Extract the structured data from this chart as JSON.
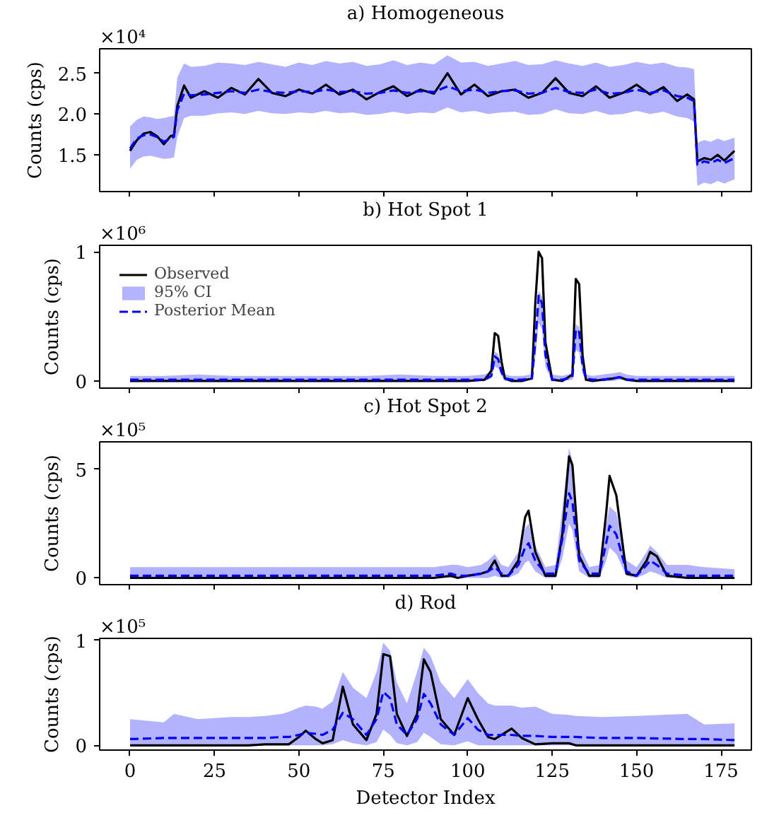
{
  "chart_data": [
    {
      "type": "line",
      "title": "a) Homogeneous",
      "ylabel": "Counts (cps)",
      "annotations": [
        "×10⁴"
      ],
      "tick_labels": "y",
      "grid": false,
      "legend": false,
      "xlim": [
        -9,
        184
      ],
      "xticks": [
        0,
        25,
        50,
        75,
        100,
        125,
        150,
        175
      ],
      "ylim": [
        1.05,
        2.8
      ],
      "yticks": [
        1.5,
        {
          "value": 2.0,
          "label": "2.0"
        },
        2.5
      ],
      "x": [
        0,
        2,
        4,
        6,
        8,
        10,
        12,
        13,
        14,
        16,
        18,
        22,
        26,
        30,
        34,
        38,
        42,
        46,
        50,
        54,
        58,
        62,
        66,
        70,
        74,
        78,
        82,
        86,
        90,
        94,
        98,
        102,
        106,
        110,
        114,
        118,
        122,
        126,
        130,
        134,
        138,
        142,
        146,
        150,
        154,
        158,
        162,
        165,
        167,
        168,
        170,
        172,
        174,
        176,
        179
      ],
      "series": [
        {
          "color": "#000000",
          "line_style": "solid",
          "values": [
            1.55,
            1.68,
            1.76,
            1.78,
            1.73,
            1.63,
            1.73,
            1.74,
            2.1,
            2.35,
            2.2,
            2.28,
            2.2,
            2.32,
            2.24,
            2.43,
            2.26,
            2.22,
            2.3,
            2.25,
            2.36,
            2.24,
            2.3,
            2.18,
            2.27,
            2.34,
            2.22,
            2.3,
            2.25,
            2.5,
            2.24,
            2.36,
            2.22,
            2.28,
            2.3,
            2.2,
            2.26,
            2.44,
            2.26,
            2.22,
            2.34,
            2.2,
            2.26,
            2.36,
            2.24,
            2.33,
            2.16,
            2.24,
            2.18,
            1.42,
            1.46,
            1.44,
            1.5,
            1.43,
            1.55
          ]
        },
        {
          "lower": [
            1.33,
            1.44,
            1.48,
            1.49,
            1.47,
            1.45,
            1.46,
            1.47,
            1.72,
            1.95,
            1.98,
            1.98,
            2.01,
            2.02,
            2.0,
            2.04,
            2.01,
            2.0,
            2.02,
            2.01,
            2.04,
            2.01,
            2.02,
            1.99,
            2.0,
            2.03,
            2.0,
            2.02,
            2.01,
            2.08,
            2.02,
            2.04,
            2.0,
            2.02,
            2.03,
            1.99,
            2.0,
            2.06,
            2.01,
            2.0,
            2.04,
            1.99,
            2.0,
            2.04,
            2.0,
            2.03,
            1.97,
            1.95,
            1.91,
            1.12,
            1.16,
            1.14,
            1.18,
            1.15,
            1.2
          ],
          "upper": [
            1.85,
            1.93,
            1.97,
            1.96,
            1.94,
            1.95,
            1.97,
            1.98,
            2.45,
            2.62,
            2.58,
            2.59,
            2.63,
            2.62,
            2.6,
            2.64,
            2.61,
            2.58,
            2.63,
            2.6,
            2.65,
            2.62,
            2.64,
            2.59,
            2.61,
            2.66,
            2.6,
            2.63,
            2.61,
            2.72,
            2.63,
            2.64,
            2.59,
            2.62,
            2.65,
            2.6,
            2.61,
            2.66,
            2.62,
            2.59,
            2.63,
            2.58,
            2.6,
            2.64,
            2.61,
            2.63,
            2.58,
            2.57,
            2.55,
            1.65,
            1.68,
            1.66,
            1.7,
            1.67,
            1.71
          ],
          "color": "#0000ff",
          "line_style": "dashed",
          "values": [
            1.58,
            1.7,
            1.74,
            1.75,
            1.72,
            1.66,
            1.7,
            1.72,
            2.05,
            2.25,
            2.23,
            2.24,
            2.26,
            2.28,
            2.26,
            2.3,
            2.27,
            2.26,
            2.28,
            2.27,
            2.3,
            2.27,
            2.28,
            2.25,
            2.26,
            2.29,
            2.26,
            2.28,
            2.27,
            2.34,
            2.28,
            2.3,
            2.26,
            2.28,
            2.29,
            2.25,
            2.26,
            2.32,
            2.27,
            2.26,
            2.3,
            2.25,
            2.26,
            2.3,
            2.26,
            2.29,
            2.22,
            2.2,
            2.16,
            1.38,
            1.42,
            1.4,
            1.44,
            1.4,
            1.46
          ]
        }
      ]
    },
    {
      "type": "line",
      "title": "b) Hot Spot 1",
      "ylabel": "Counts (cps)",
      "annotations": [
        "×10⁶"
      ],
      "tick_labels": "y",
      "grid": false,
      "legend": "top left",
      "xlim": [
        -9,
        184
      ],
      "xticks": [
        0,
        25,
        50,
        75,
        100,
        125,
        150,
        175
      ],
      "ylim": [
        -0.055,
        1.05
      ],
      "yticks": [
        0,
        1
      ],
      "x": [
        0,
        10,
        20,
        30,
        40,
        50,
        60,
        70,
        80,
        90,
        100,
        105,
        107,
        108,
        109,
        110,
        111,
        113,
        116,
        119,
        120,
        121,
        122,
        123,
        125,
        128,
        131,
        132,
        133,
        134,
        135,
        137,
        140,
        143,
        145,
        147,
        150,
        160,
        170,
        179
      ],
      "series": [
        {
          "name": "Observed",
          "color": "#000000",
          "line_style": "solid",
          "values": [
            0,
            0,
            0,
            0,
            0,
            0,
            0,
            0,
            0,
            0,
            0,
            0.01,
            0.08,
            0.37,
            0.35,
            0.15,
            0.02,
            0,
            0,
            0.02,
            0.6,
            1.0,
            0.95,
            0.3,
            0.01,
            0,
            0.05,
            0.79,
            0.75,
            0.2,
            0.01,
            0,
            0.01,
            0.02,
            0.03,
            0.01,
            0,
            0,
            0,
            0
          ]
        },
        {
          "name": "95% CI",
          "type": "area",
          "color": "#b3b3ff",
          "values": [
            null,
            null,
            null,
            null,
            null,
            null,
            null,
            null,
            null,
            null,
            null,
            null,
            null,
            null,
            null,
            null,
            null,
            null,
            null,
            null,
            null,
            null,
            null,
            null,
            null,
            null,
            null,
            null,
            null,
            null,
            null,
            null,
            null,
            null,
            null,
            null,
            null,
            null,
            null,
            null
          ]
        },
        {
          "lower": [
            0,
            0,
            0,
            0,
            0,
            0,
            0,
            0,
            0,
            0,
            0,
            0,
            0.02,
            0.11,
            0.1,
            0.04,
            0,
            0,
            0,
            0.01,
            0.18,
            0.45,
            0.4,
            0.11,
            0,
            0,
            0.01,
            0.24,
            0.22,
            0.06,
            0,
            0,
            0,
            0,
            0.01,
            0,
            0,
            0,
            0,
            0
          ],
          "upper": [
            0.04,
            0.04,
            0.05,
            0.04,
            0.04,
            0.04,
            0.04,
            0.04,
            0.05,
            0.04,
            0.04,
            0.05,
            0.07,
            0.23,
            0.21,
            0.1,
            0.05,
            0.04,
            0.04,
            0.05,
            0.34,
            0.7,
            0.65,
            0.24,
            0.05,
            0.04,
            0.06,
            0.44,
            0.42,
            0.16,
            0.05,
            0.04,
            0.05,
            0.06,
            0.07,
            0.05,
            0.04,
            0.04,
            0.04,
            0.04
          ],
          "name": "Posterior Mean",
          "color": "#0000ff",
          "line_style": "dashed",
          "values": [
            0.01,
            0.01,
            0.01,
            0.01,
            0.01,
            0.01,
            0.01,
            0.01,
            0.01,
            0.01,
            0.01,
            0.01,
            0.04,
            0.19,
            0.17,
            0.07,
            0.02,
            0.01,
            0.01,
            0.02,
            0.3,
            0.66,
            0.6,
            0.2,
            0.01,
            0.01,
            0.03,
            0.4,
            0.38,
            0.12,
            0.02,
            0.01,
            0.01,
            0.02,
            0.03,
            0.01,
            0.01,
            0.01,
            0.01,
            0.01
          ]
        }
      ]
    },
    {
      "type": "line",
      "title": "c) Hot Spot 2",
      "ylabel": "Counts (cps)",
      "annotations": [
        "×10⁵"
      ],
      "tick_labels": "y",
      "grid": false,
      "legend": false,
      "xlim": [
        -9,
        184
      ],
      "xticks": [
        0,
        25,
        50,
        75,
        100,
        125,
        150,
        175
      ],
      "ylim": [
        -0.31,
        6.27
      ],
      "yticks": [
        0,
        5
      ],
      "x": [
        0,
        10,
        20,
        30,
        40,
        50,
        60,
        70,
        80,
        90,
        95,
        97,
        100,
        104,
        106,
        108,
        110,
        112,
        115,
        117,
        118,
        120,
        123,
        126,
        128,
        130,
        131,
        133,
        136,
        139,
        141,
        142,
        144,
        147,
        150,
        153,
        154,
        156,
        159,
        165,
        170,
        179
      ],
      "series": [
        {
          "color": "#000000",
          "line_style": "solid",
          "values": [
            0,
            0,
            0,
            0,
            0,
            0,
            0,
            0,
            0,
            0,
            0.1,
            0,
            0.1,
            0.2,
            0.3,
            0.8,
            0.1,
            0.1,
            0.8,
            2.8,
            3.1,
            1.2,
            0.1,
            0.1,
            2.0,
            5.6,
            5.2,
            1.0,
            0.1,
            0.1,
            3.0,
            4.7,
            3.8,
            0.2,
            0.1,
            0.8,
            1.2,
            1.0,
            0.1,
            0,
            0,
            0
          ]
        },
        {
          "lower": [
            0,
            0,
            0,
            0,
            0,
            0,
            0,
            0,
            0,
            0,
            0,
            0,
            0,
            0,
            0,
            0.1,
            0,
            0,
            0.2,
            0.7,
            0.8,
            0.3,
            0,
            0,
            0.9,
            2.5,
            2.2,
            0.3,
            0,
            0,
            0.8,
            1.4,
            1.1,
            0.1,
            0,
            0.2,
            0.3,
            0.2,
            0,
            0,
            0,
            0
          ],
          "upper": [
            0.5,
            0.5,
            0.5,
            0.5,
            0.5,
            0.5,
            0.5,
            0.5,
            0.5,
            0.5,
            0.6,
            0.6,
            0.5,
            0.6,
            0.8,
            1.1,
            0.6,
            0.5,
            1.2,
            2.3,
            2.5,
            1.5,
            0.5,
            0.6,
            3.2,
            6.0,
            5.4,
            1.5,
            0.5,
            0.6,
            2.5,
            3.3,
            3.0,
            0.8,
            0.5,
            1.2,
            1.5,
            1.2,
            0.6,
            0.6,
            0.5,
            0.4
          ],
          "color": "#0000ff",
          "line_style": "dashed",
          "values": [
            0.1,
            0.1,
            0.1,
            0.1,
            0.1,
            0.1,
            0.1,
            0.1,
            0.1,
            0.1,
            0.2,
            0.1,
            0.1,
            0.2,
            0.3,
            0.5,
            0.2,
            0.1,
            0.6,
            1.4,
            1.6,
            0.8,
            0.2,
            0.2,
            1.8,
            3.9,
            3.5,
            0.8,
            0.2,
            0.2,
            1.6,
            2.4,
            2.0,
            0.3,
            0.1,
            0.6,
            0.8,
            0.6,
            0.2,
            0.1,
            0.1,
            0.1
          ]
        }
      ]
    },
    {
      "type": "line",
      "title": "d) Rod",
      "xlabel": "Detector Index",
      "ylabel": "Counts (cps)",
      "annotations": [
        "×10⁵"
      ],
      "grid": false,
      "legend": false,
      "xlim": [
        -9,
        184
      ],
      "xticks": [
        0,
        25,
        50,
        75,
        100,
        125,
        150,
        175
      ],
      "ylim": [
        -0.045,
        1.02
      ],
      "yticks": [
        0,
        1
      ],
      "x": [
        0,
        10,
        13,
        20,
        30,
        35,
        40,
        45,
        47,
        50,
        52,
        55,
        57,
        60,
        63,
        66,
        70,
        73,
        75,
        77,
        79,
        82,
        85,
        87,
        89,
        92,
        96,
        100,
        103,
        106,
        108,
        113,
        116,
        120,
        125,
        130,
        132,
        140,
        150,
        165,
        170,
        179
      ],
      "series": [
        {
          "color": "#000000",
          "line_style": "solid",
          "values": [
            0,
            0,
            0,
            0,
            0,
            0,
            0.01,
            0.01,
            0.01,
            0.08,
            0.14,
            0.06,
            0.02,
            0.05,
            0.56,
            0.2,
            0.05,
            0.3,
            0.87,
            0.85,
            0.3,
            0.09,
            0.3,
            0.82,
            0.7,
            0.25,
            0.1,
            0.45,
            0.25,
            0.08,
            0.06,
            0.16,
            0.07,
            0.01,
            0.02,
            0.02,
            0,
            0,
            0,
            0,
            0,
            0
          ]
        },
        {
          "lower": [
            0,
            0,
            0,
            0,
            0,
            0,
            0,
            0,
            0,
            0,
            0,
            0,
            0,
            0.01,
            0.05,
            0.02,
            0,
            0.03,
            0.15,
            0.1,
            0.02,
            0,
            0.03,
            0.12,
            0.08,
            0.01,
            0,
            0.04,
            0,
            0,
            0,
            0,
            0,
            0,
            0,
            0,
            0,
            0,
            0,
            0,
            0,
            0
          ],
          "upper": [
            0.25,
            0.22,
            0.3,
            0.25,
            0.27,
            0.27,
            0.28,
            0.3,
            0.32,
            0.36,
            0.38,
            0.37,
            0.35,
            0.42,
            0.7,
            0.55,
            0.45,
            0.7,
            0.98,
            0.9,
            0.6,
            0.4,
            0.7,
            0.93,
            0.85,
            0.6,
            0.45,
            0.63,
            0.5,
            0.4,
            0.38,
            0.38,
            0.36,
            0.37,
            0.3,
            0.29,
            0.28,
            0.27,
            0.28,
            0.3,
            0.2,
            0.21
          ],
          "color": "#0000ff",
          "line_style": "dashed",
          "values": [
            0.06,
            0.07,
            0.07,
            0.07,
            0.07,
            0.07,
            0.07,
            0.08,
            0.08,
            0.1,
            0.12,
            0.11,
            0.1,
            0.15,
            0.31,
            0.25,
            0.1,
            0.25,
            0.51,
            0.45,
            0.2,
            0.1,
            0.25,
            0.49,
            0.4,
            0.2,
            0.1,
            0.26,
            0.15,
            0.1,
            0.1,
            0.1,
            0.09,
            0.09,
            0.08,
            0.08,
            0.08,
            0.07,
            0.07,
            0.06,
            0.06,
            0.05
          ]
        }
      ]
    }
  ]
}
